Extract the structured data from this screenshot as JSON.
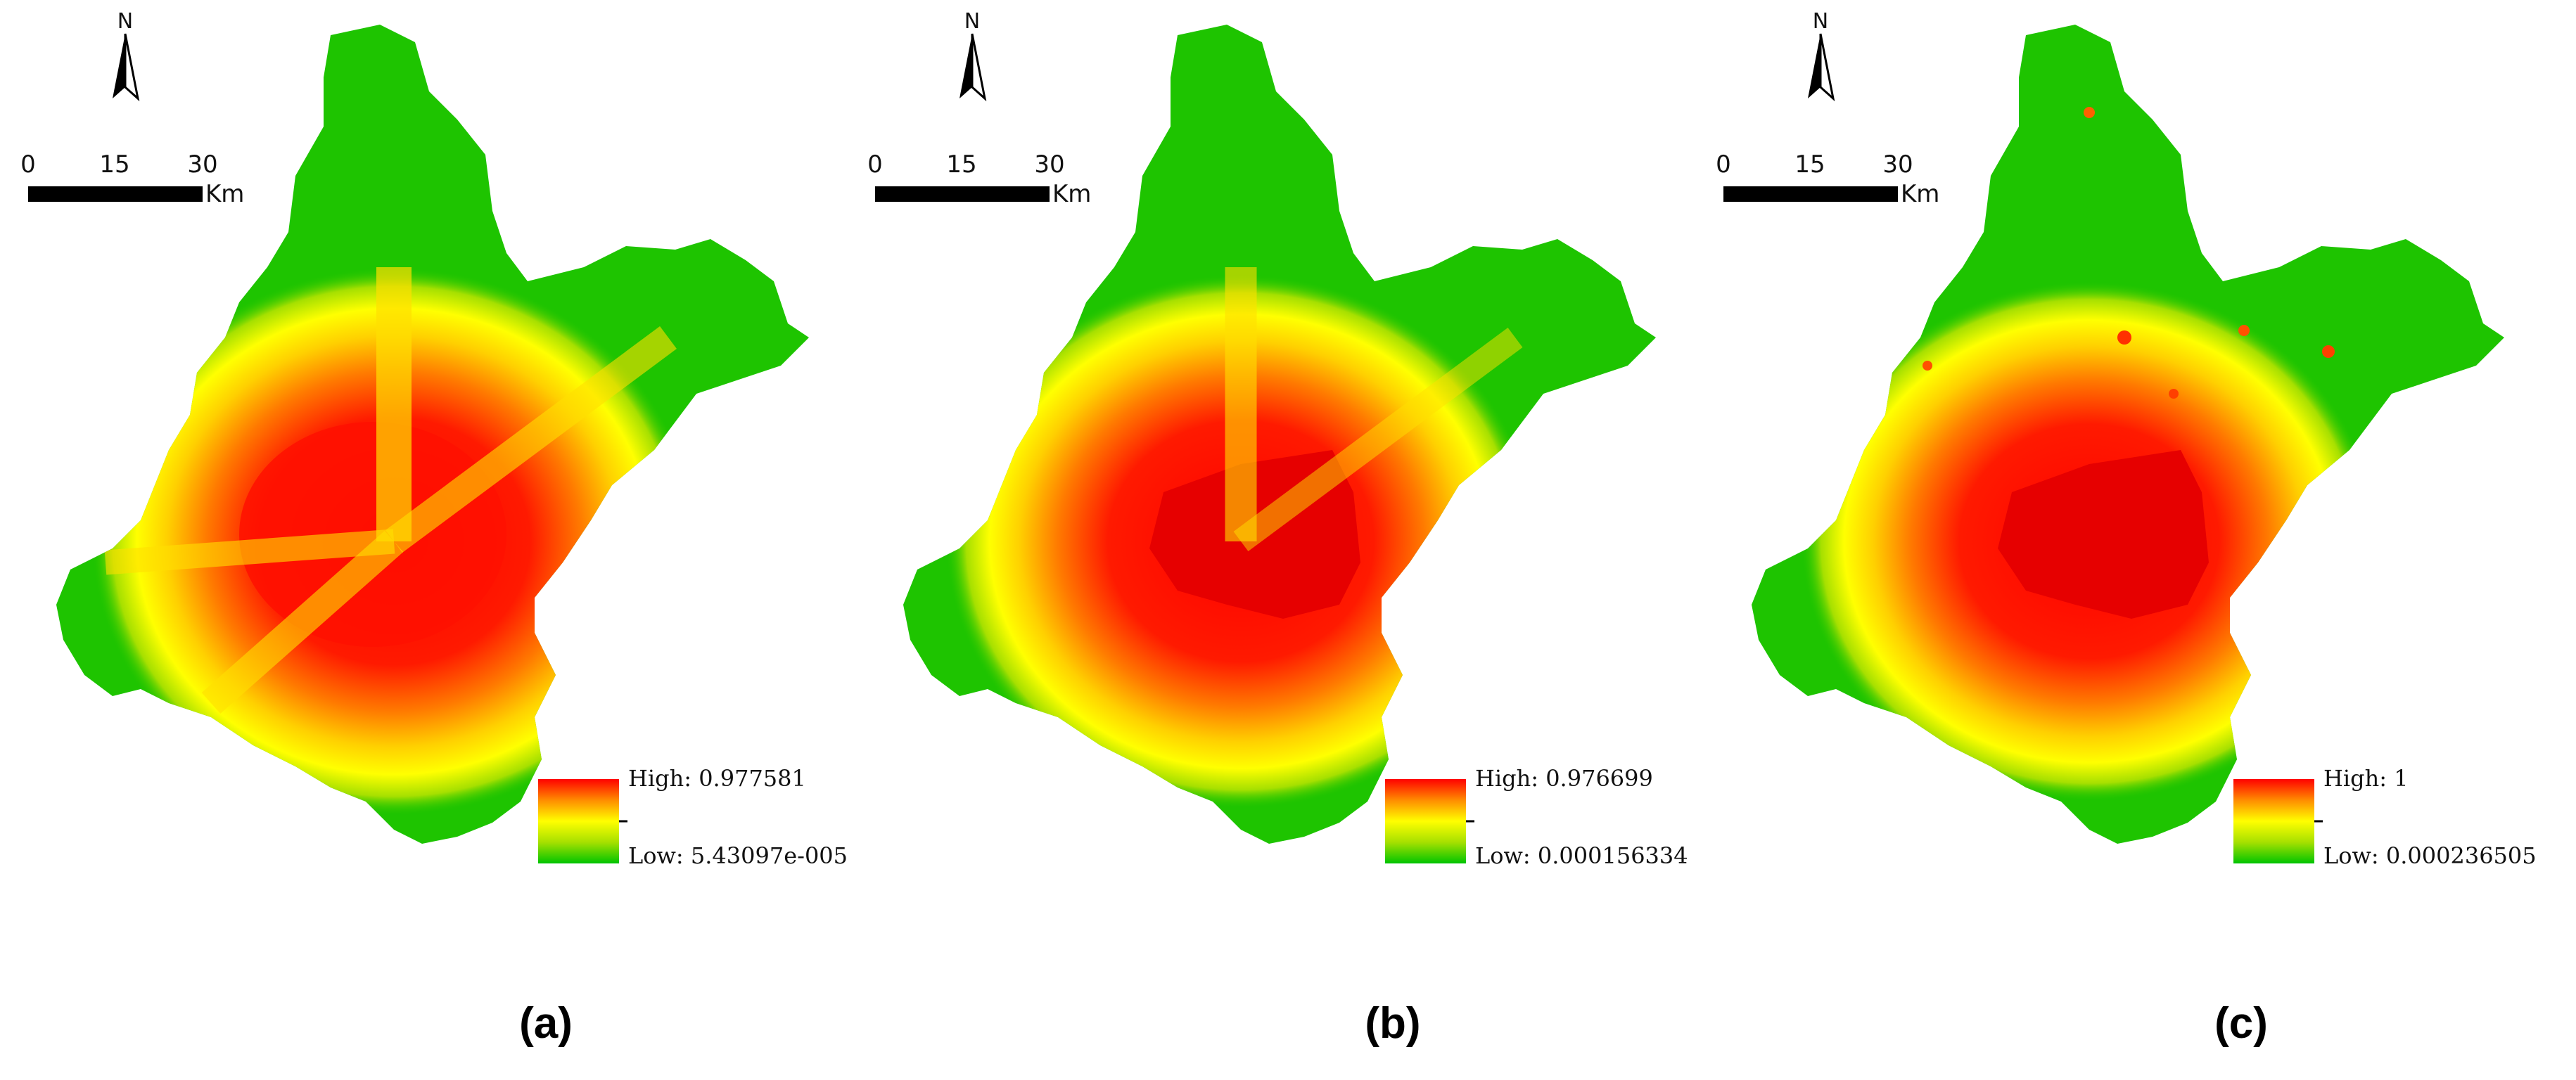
{
  "colors": {
    "high": "#ff0000",
    "mid_high": "#ff8c00",
    "mid": "#ffff00",
    "mid_low": "#a6e000",
    "low": "#00c400"
  },
  "panels": [
    {
      "label": "(a)",
      "north": "N",
      "scale": {
        "ticks": [
          "0",
          "15",
          "30"
        ],
        "unit": "Km"
      },
      "legend": {
        "high": "High: 0.977581",
        "low": "Low: 5.43097e-005"
      }
    },
    {
      "label": "(b)",
      "north": "N",
      "scale": {
        "ticks": [
          "0",
          "15",
          "30"
        ],
        "unit": "Km"
      },
      "legend": {
        "high": "High: 0.976699",
        "low": "Low: 0.000156334"
      }
    },
    {
      "label": "(c)",
      "north": "N",
      "scale": {
        "ticks": [
          "0",
          "15",
          "30"
        ],
        "unit": "Km"
      },
      "legend": {
        "high": "High: 1",
        "low": "Low: 0.000236505"
      }
    }
  ]
}
